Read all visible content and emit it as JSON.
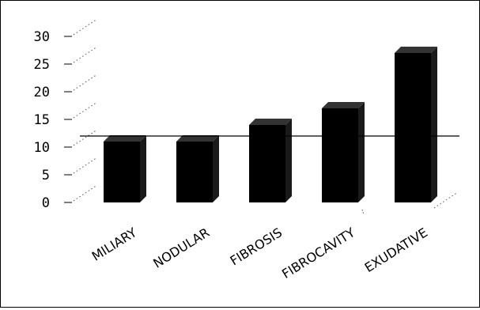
{
  "chart_data": {
    "type": "bar",
    "style": "3d",
    "categories": [
      "MILIARY",
      "NODULAR",
      "FIBROSIS",
      "FIBROCAVITY",
      "EXUDATIVE"
    ],
    "values": [
      11,
      11,
      14,
      17,
      27
    ],
    "title": "",
    "xlabel": "",
    "ylabel": "",
    "ylim": [
      0,
      30
    ],
    "yticks": [
      0,
      5,
      10,
      15,
      20,
      25,
      30
    ],
    "reference_line": 12,
    "grid": false,
    "legend": "none",
    "colors": {
      "bar": "#000000",
      "bar_side": "#1a1a1a",
      "bar_top": "#333333",
      "axis": "#000000",
      "gridline_dotted": "#555555"
    }
  }
}
